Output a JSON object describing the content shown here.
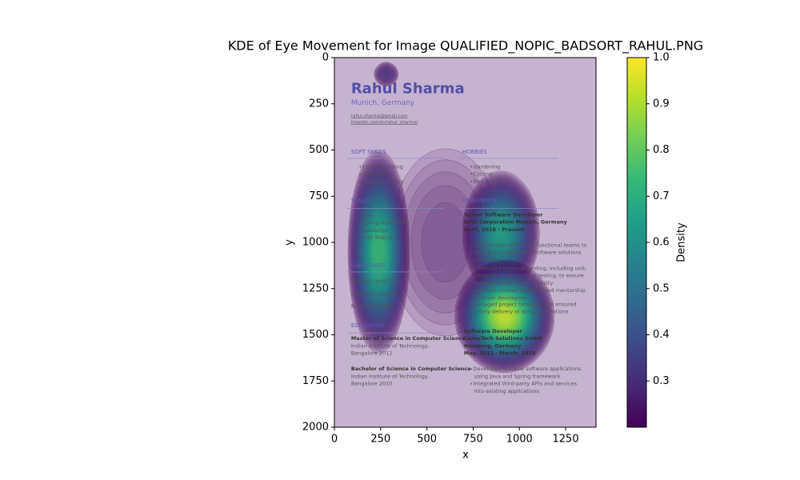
{
  "chart_data": {
    "type": "kde",
    "title": "KDE of Eye Movement for Image QUALIFIED_NOPIC_BADSORT_RAHUL.PNG",
    "xlabel": "x",
    "ylabel": "y",
    "xlim": [
      0,
      1414
    ],
    "ylim": [
      0,
      2000
    ],
    "y_inverted": true,
    "xticks": [
      0,
      250,
      500,
      750,
      1000,
      1250
    ],
    "yticks": [
      0,
      250,
      500,
      750,
      1000,
      1250,
      1500,
      1750,
      2000
    ],
    "colormap": "viridis",
    "colorbar_label": "Density",
    "clim": [
      0.2,
      1
    ],
    "colorbar_ticks": [
      0.3,
      0.4,
      0.5,
      0.6,
      0.7,
      0.8,
      0.9,
      {
        "value": 1,
        "label": "1.0"
      }
    ],
    "hotspots": [
      {
        "x": 600,
        "y": 1000,
        "sx": 420,
        "sy": 700,
        "density": 0.26
      },
      {
        "x": 280,
        "y": 90,
        "sx": 60,
        "sy": 60,
        "density": 0.36
      },
      {
        "x": 240,
        "y": 1050,
        "sx": 100,
        "sy": 330,
        "density": 0.8
      },
      {
        "x": 900,
        "y": 950,
        "sx": 130,
        "sy": 210,
        "density": 0.72
      },
      {
        "x": 920,
        "y": 1400,
        "sx": 150,
        "sy": 170,
        "density": 1.0
      }
    ],
    "background_document": {
      "lines": [
        "Rahul Sharma",
        "Munich, Germany",
        "rahul.sharma@gmail.com",
        "linkedin.com/in/rahul_sharma/",
        "SOFT SKILLS",
        "Critical thinking",
        "Adaptability",
        "Problem-solving",
        "SKILLS",
        "Java",
        "Spring Framework",
        "JavaScript",
        "Unit Testing",
        "LANGUAGES",
        "English: Level C1",
        "German: Level C2",
        "Kannada: Fluent",
        "EDUCATION",
        "Master of Science in Computer Science",
        "Indian Institute of Technology,",
        "Bangalore 2012",
        "Bachelor of Science in Computer Science",
        "Indian Institute of Technology,",
        "Bangalore 2010",
        "HOBBIES",
        "Gardening",
        "Cycling",
        "Bird watching",
        "EXPERIENCE",
        "Senior Software Developer",
        "Intel Corporation Munich, Germany",
        "April, 2018 - Present",
        "Collaborated with cross-functional teams to",
        "design and implement software solutions",
        "using Java",
        "Conducted thorough testing, including unit,",
        "integration, and system testing, to ensure",
        "software quality and reliability",
        "Led code reviews and provided mentorship",
        "to junior developers",
        "Managed project timelines and ensured",
        "timely delivery of software solutions",
        "Software Developer",
        "CompTech Solutions GmbH",
        "Hamburg, Germany",
        "May, 2012 - March, 2018",
        "Developed scalable software applications",
        "using Java and Spring framework",
        "Integrated third-party APIs and services",
        "into existing applications"
      ]
    }
  }
}
